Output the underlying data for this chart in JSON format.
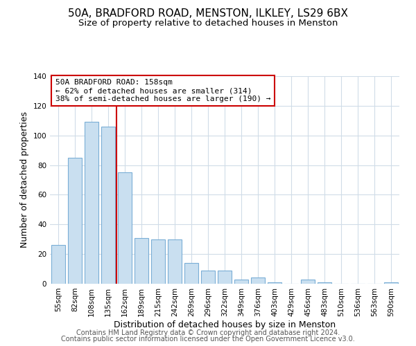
{
  "title": "50A, BRADFORD ROAD, MENSTON, ILKLEY, LS29 6BX",
  "subtitle": "Size of property relative to detached houses in Menston",
  "xlabel": "Distribution of detached houses by size in Menston",
  "ylabel": "Number of detached properties",
  "bar_labels": [
    "55sqm",
    "82sqm",
    "108sqm",
    "135sqm",
    "162sqm",
    "189sqm",
    "215sqm",
    "242sqm",
    "269sqm",
    "296sqm",
    "322sqm",
    "349sqm",
    "376sqm",
    "403sqm",
    "429sqm",
    "456sqm",
    "483sqm",
    "510sqm",
    "536sqm",
    "563sqm",
    "590sqm"
  ],
  "bar_values": [
    26,
    85,
    109,
    106,
    75,
    31,
    30,
    30,
    14,
    9,
    9,
    3,
    4,
    1,
    0,
    3,
    1,
    0,
    0,
    0,
    1
  ],
  "bar_color": "#c9dff0",
  "bar_edge_color": "#7aaed6",
  "vline_index": 4,
  "vline_color": "#cc0000",
  "annotation_title": "50A BRADFORD ROAD: 158sqm",
  "annotation_line1": "← 62% of detached houses are smaller (314)",
  "annotation_line2": "38% of semi-detached houses are larger (190) →",
  "annotation_box_color": "#ffffff",
  "annotation_box_edge_color": "#cc0000",
  "ylim": [
    0,
    140
  ],
  "yticks": [
    0,
    20,
    40,
    60,
    80,
    100,
    120,
    140
  ],
  "footer1": "Contains HM Land Registry data © Crown copyright and database right 2024.",
  "footer2": "Contains public sector information licensed under the Open Government Licence v3.0.",
  "background_color": "#ffffff",
  "grid_color": "#d0dce8",
  "title_fontsize": 11,
  "subtitle_fontsize": 9.5,
  "axis_label_fontsize": 9,
  "tick_fontsize": 7.5,
  "footer_fontsize": 7
}
